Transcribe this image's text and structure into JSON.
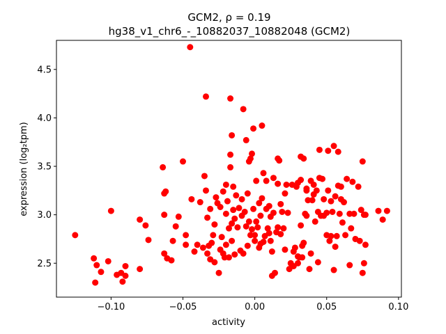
{
  "chart_data": {
    "type": "scatter",
    "title_line1": "GCM2, ρ = 0.19",
    "title_line2": "hg38_v1_chr6_-_10882037_10882048 (GCM2)",
    "xlabel": "activity",
    "ylabel": "expression (log₂tpm)",
    "xlim": [
      -0.138,
      0.102
    ],
    "ylim": [
      2.15,
      4.8
    ],
    "xticks": [
      -0.1,
      -0.05,
      0.0,
      0.05,
      0.1
    ],
    "xtick_labels": [
      "−0.10",
      "−0.05",
      "0.00",
      "0.05",
      "0.10"
    ],
    "yticks": [
      2.5,
      3.0,
      3.5,
      4.0,
      4.5
    ],
    "ytick_labels": [
      "2.5",
      "3.0",
      "3.5",
      "4.0",
      "4.5"
    ],
    "grid": false,
    "marker_color": "#ff0000",
    "points": [
      [
        -0.125,
        2.79
      ],
      [
        -0.112,
        2.55
      ],
      [
        -0.111,
        2.3
      ],
      [
        -0.11,
        2.48
      ],
      [
        -0.107,
        2.41
      ],
      [
        -0.102,
        2.52
      ],
      [
        -0.1,
        3.04
      ],
      [
        -0.096,
        2.38
      ],
      [
        -0.093,
        2.4
      ],
      [
        -0.092,
        2.31
      ],
      [
        -0.09,
        2.47
      ],
      [
        -0.09,
        2.37
      ],
      [
        -0.08,
        2.95
      ],
      [
        -0.08,
        2.44
      ],
      [
        -0.076,
        2.89
      ],
      [
        -0.074,
        2.74
      ],
      [
        -0.064,
        3.49
      ],
      [
        -0.063,
        3.22
      ],
      [
        -0.062,
        3.24
      ],
      [
        -0.063,
        3.0
      ],
      [
        -0.063,
        2.6
      ],
      [
        -0.061,
        2.55
      ],
      [
        -0.058,
        2.53
      ],
      [
        -0.057,
        2.73
      ],
      [
        -0.055,
        2.88
      ],
      [
        -0.053,
        2.98
      ],
      [
        -0.05,
        3.55
      ],
      [
        -0.048,
        2.79
      ],
      [
        -0.048,
        2.69
      ],
      [
        -0.045,
        4.73
      ],
      [
        -0.044,
        3.16
      ],
      [
        -0.042,
        2.62
      ],
      [
        -0.04,
        2.69
      ],
      [
        -0.038,
        3.13
      ],
      [
        -0.036,
        2.66
      ],
      [
        -0.035,
        3.4
      ],
      [
        -0.034,
        3.25
      ],
      [
        -0.034,
        4.22
      ],
      [
        -0.033,
        2.97
      ],
      [
        -0.033,
        2.6
      ],
      [
        -0.032,
        2.68
      ],
      [
        -0.031,
        3.06
      ],
      [
        -0.031,
        2.54
      ],
      [
        -0.03,
        2.71
      ],
      [
        -0.029,
        2.79
      ],
      [
        -0.028,
        2.51
      ],
      [
        -0.028,
        2.9
      ],
      [
        -0.027,
        3.18
      ],
      [
        -0.026,
        3.12
      ],
      [
        -0.025,
        2.4
      ],
      [
        -0.024,
        3.08
      ],
      [
        -0.024,
        2.64
      ],
      [
        -0.023,
        2.77
      ],
      [
        -0.022,
        3.24
      ],
      [
        -0.022,
        2.6
      ],
      [
        -0.021,
        2.56
      ],
      [
        -0.02,
        3.31
      ],
      [
        -0.02,
        3.01
      ],
      [
        -0.02,
        2.69
      ],
      [
        -0.019,
        3.14
      ],
      [
        -0.018,
        2.86
      ],
      [
        -0.018,
        2.56
      ],
      [
        -0.017,
        4.2
      ],
      [
        -0.017,
        3.62
      ],
      [
        -0.017,
        3.49
      ],
      [
        -0.016,
        3.82
      ],
      [
        -0.016,
        2.91
      ],
      [
        -0.016,
        2.73
      ],
      [
        -0.015,
        3.29
      ],
      [
        -0.015,
        3.05
      ],
      [
        -0.014,
        2.96
      ],
      [
        -0.014,
        2.59
      ],
      [
        -0.013,
        3.2
      ],
      [
        -0.012,
        2.87
      ],
      [
        -0.011,
        3.07
      ],
      [
        -0.01,
        2.63
      ],
      [
        -0.009,
        3.16
      ],
      [
        -0.009,
        2.99
      ],
      [
        -0.008,
        4.09
      ],
      [
        -0.008,
        2.6
      ],
      [
        -0.007,
        3.03
      ],
      [
        -0.006,
        2.88
      ],
      [
        -0.006,
        3.77
      ],
      [
        -0.005,
        2.68
      ],
      [
        -0.005,
        3.22
      ],
      [
        -0.004,
        2.93
      ],
      [
        -0.004,
        3.55
      ],
      [
        -0.003,
        2.79
      ],
      [
        -0.003,
        3.58
      ],
      [
        -0.002,
        3.63
      ],
      [
        -0.002,
        2.85
      ],
      [
        -0.001,
        3.89
      ],
      [
        -0.001,
        3.06
      ],
      [
        0.0,
        2.79
      ],
      [
        0.0,
        2.73
      ],
      [
        0.001,
        3.35
      ],
      [
        0.001,
        2.93
      ],
      [
        0.002,
        2.87
      ],
      [
        0.003,
        3.12
      ],
      [
        0.003,
        2.66
      ],
      [
        0.004,
        2.7
      ],
      [
        0.004,
        2.99
      ],
      [
        0.005,
        3.92
      ],
      [
        0.005,
        3.17
      ],
      [
        0.006,
        3.43
      ],
      [
        0.006,
        2.72
      ],
      [
        0.007,
        2.78
      ],
      [
        0.008,
        3.35
      ],
      [
        0.008,
        3.06
      ],
      [
        0.009,
        2.86
      ],
      [
        0.01,
        2.81
      ],
      [
        0.01,
        3.09
      ],
      [
        0.011,
        2.73
      ],
      [
        0.011,
        2.98
      ],
      [
        0.012,
        2.37
      ],
      [
        0.012,
        2.62
      ],
      [
        0.013,
        3.38
      ],
      [
        0.013,
        3.02
      ],
      [
        0.014,
        2.4
      ],
      [
        0.015,
        2.82
      ],
      [
        0.016,
        3.32
      ],
      [
        0.016,
        3.58
      ],
      [
        0.016,
        2.87
      ],
      [
        0.017,
        3.56
      ],
      [
        0.018,
        2.8
      ],
      [
        0.018,
        3.11
      ],
      [
        0.019,
        3.03
      ],
      [
        0.02,
        2.86
      ],
      [
        0.021,
        2.64
      ],
      [
        0.021,
        3.22
      ],
      [
        0.022,
        3.31
      ],
      [
        0.023,
        3.02
      ],
      [
        0.024,
        2.44
      ],
      [
        0.025,
        2.5
      ],
      [
        0.026,
        3.31
      ],
      [
        0.027,
        2.62
      ],
      [
        0.027,
        2.47
      ],
      [
        0.028,
        2.66
      ],
      [
        0.029,
        3.29
      ],
      [
        0.03,
        3.33
      ],
      [
        0.03,
        2.57
      ],
      [
        0.03,
        2.5
      ],
      [
        0.031,
        2.56
      ],
      [
        0.032,
        3.36
      ],
      [
        0.032,
        2.89
      ],
      [
        0.032,
        3.6
      ],
      [
        0.033,
        2.68
      ],
      [
        0.033,
        2.56
      ],
      [
        0.034,
        3.58
      ],
      [
        0.034,
        2.71
      ],
      [
        0.035,
        3.01
      ],
      [
        0.036,
        2.99
      ],
      [
        0.036,
        3.27
      ],
      [
        0.036,
        3.25
      ],
      [
        0.037,
        3.15
      ],
      [
        0.038,
        2.44
      ],
      [
        0.039,
        3.35
      ],
      [
        0.039,
        2.6
      ],
      [
        0.04,
        3.15
      ],
      [
        0.041,
        3.31
      ],
      [
        0.041,
        3.21
      ],
      [
        0.042,
        2.93
      ],
      [
        0.043,
        3.25
      ],
      [
        0.044,
        3.03
      ],
      [
        0.044,
        2.51
      ],
      [
        0.045,
        3.38
      ],
      [
        0.045,
        3.67
      ],
      [
        0.046,
        2.99
      ],
      [
        0.047,
        3.37
      ],
      [
        0.048,
        2.99
      ],
      [
        0.048,
        3.16
      ],
      [
        0.05,
        3.02
      ],
      [
        0.05,
        2.79
      ],
      [
        0.051,
        3.66
      ],
      [
        0.051,
        3.25
      ],
      [
        0.052,
        2.73
      ],
      [
        0.053,
        3.14
      ],
      [
        0.053,
        2.78
      ],
      [
        0.054,
        3.03
      ],
      [
        0.055,
        2.43
      ],
      [
        0.055,
        3.71
      ],
      [
        0.056,
        3.19
      ],
      [
        0.056,
        2.67
      ],
      [
        0.057,
        2.78
      ],
      [
        0.058,
        3.3
      ],
      [
        0.058,
        3.65
      ],
      [
        0.059,
        3.01
      ],
      [
        0.06,
        3.16
      ],
      [
        0.06,
        3.29
      ],
      [
        0.061,
        2.92
      ],
      [
        0.062,
        3.13
      ],
      [
        0.063,
        2.79
      ],
      [
        0.064,
        3.37
      ],
      [
        0.066,
        2.48
      ],
      [
        0.066,
        3.01
      ],
      [
        0.067,
        2.86
      ],
      [
        0.068,
        3.34
      ],
      [
        0.069,
        3.01
      ],
      [
        0.07,
        2.75
      ],
      [
        0.072,
        3.29
      ],
      [
        0.073,
        2.73
      ],
      [
        0.074,
        3.05
      ],
      [
        0.075,
        2.4
      ],
      [
        0.075,
        3.55
      ],
      [
        0.076,
        3.0
      ],
      [
        0.076,
        2.5
      ],
      [
        0.077,
        2.69
      ],
      [
        0.077,
        3.0
      ],
      [
        0.086,
        3.04
      ],
      [
        0.089,
        2.95
      ],
      [
        0.092,
        3.04
      ]
    ]
  }
}
